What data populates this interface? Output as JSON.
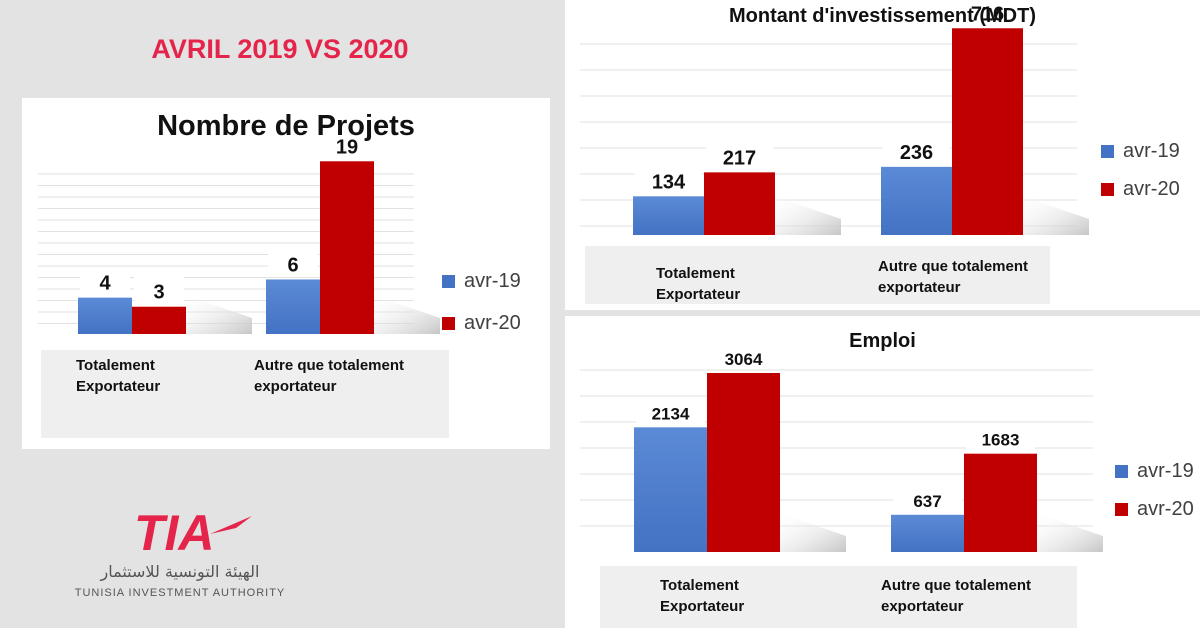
{
  "headline": "AVRIL 2019 VS 2020",
  "series_colors": {
    "avr-19": "#4472c4",
    "avr-20": "#c00000"
  },
  "chart_data": [
    {
      "type": "bar",
      "title": "Nombre de Projets",
      "categories": [
        "Totalement\nExportateur",
        "Autre que totalement\nexportateur"
      ],
      "series": [
        {
          "name": "avr-19",
          "values": [
            4,
            6
          ]
        },
        {
          "name": "avr-20",
          "values": [
            3,
            19
          ]
        }
      ],
      "ylim": [
        0,
        22
      ],
      "grid": true,
      "legend": "right"
    },
    {
      "type": "bar",
      "title": "Montant d'investissement (MDT)",
      "categories": [
        "Totalement\nExportateur",
        "Autre que totalement\nexportateur"
      ],
      "series": [
        {
          "name": "avr-19",
          "values": [
            134,
            236
          ]
        },
        {
          "name": "avr-20",
          "values": [
            217,
            716
          ]
        }
      ],
      "ylim": [
        0,
        800
      ],
      "grid": true,
      "legend": "right"
    },
    {
      "type": "bar",
      "title": "Emploi",
      "categories": [
        "Totalement\nExportateur",
        "Autre que totalement\nexportateur"
      ],
      "series": [
        {
          "name": "avr-19",
          "values": [
            2134,
            637
          ]
        },
        {
          "name": "avr-20",
          "values": [
            3064,
            1683
          ]
        }
      ],
      "ylim": [
        0,
        3800
      ],
      "grid": true,
      "legend": "right"
    }
  ],
  "logo": {
    "mark": "TIA",
    "arabic_name": "الهيئة التونسية للاستثمار",
    "english_name": "TUNISIA INVESTMENT AUTHORITY"
  }
}
